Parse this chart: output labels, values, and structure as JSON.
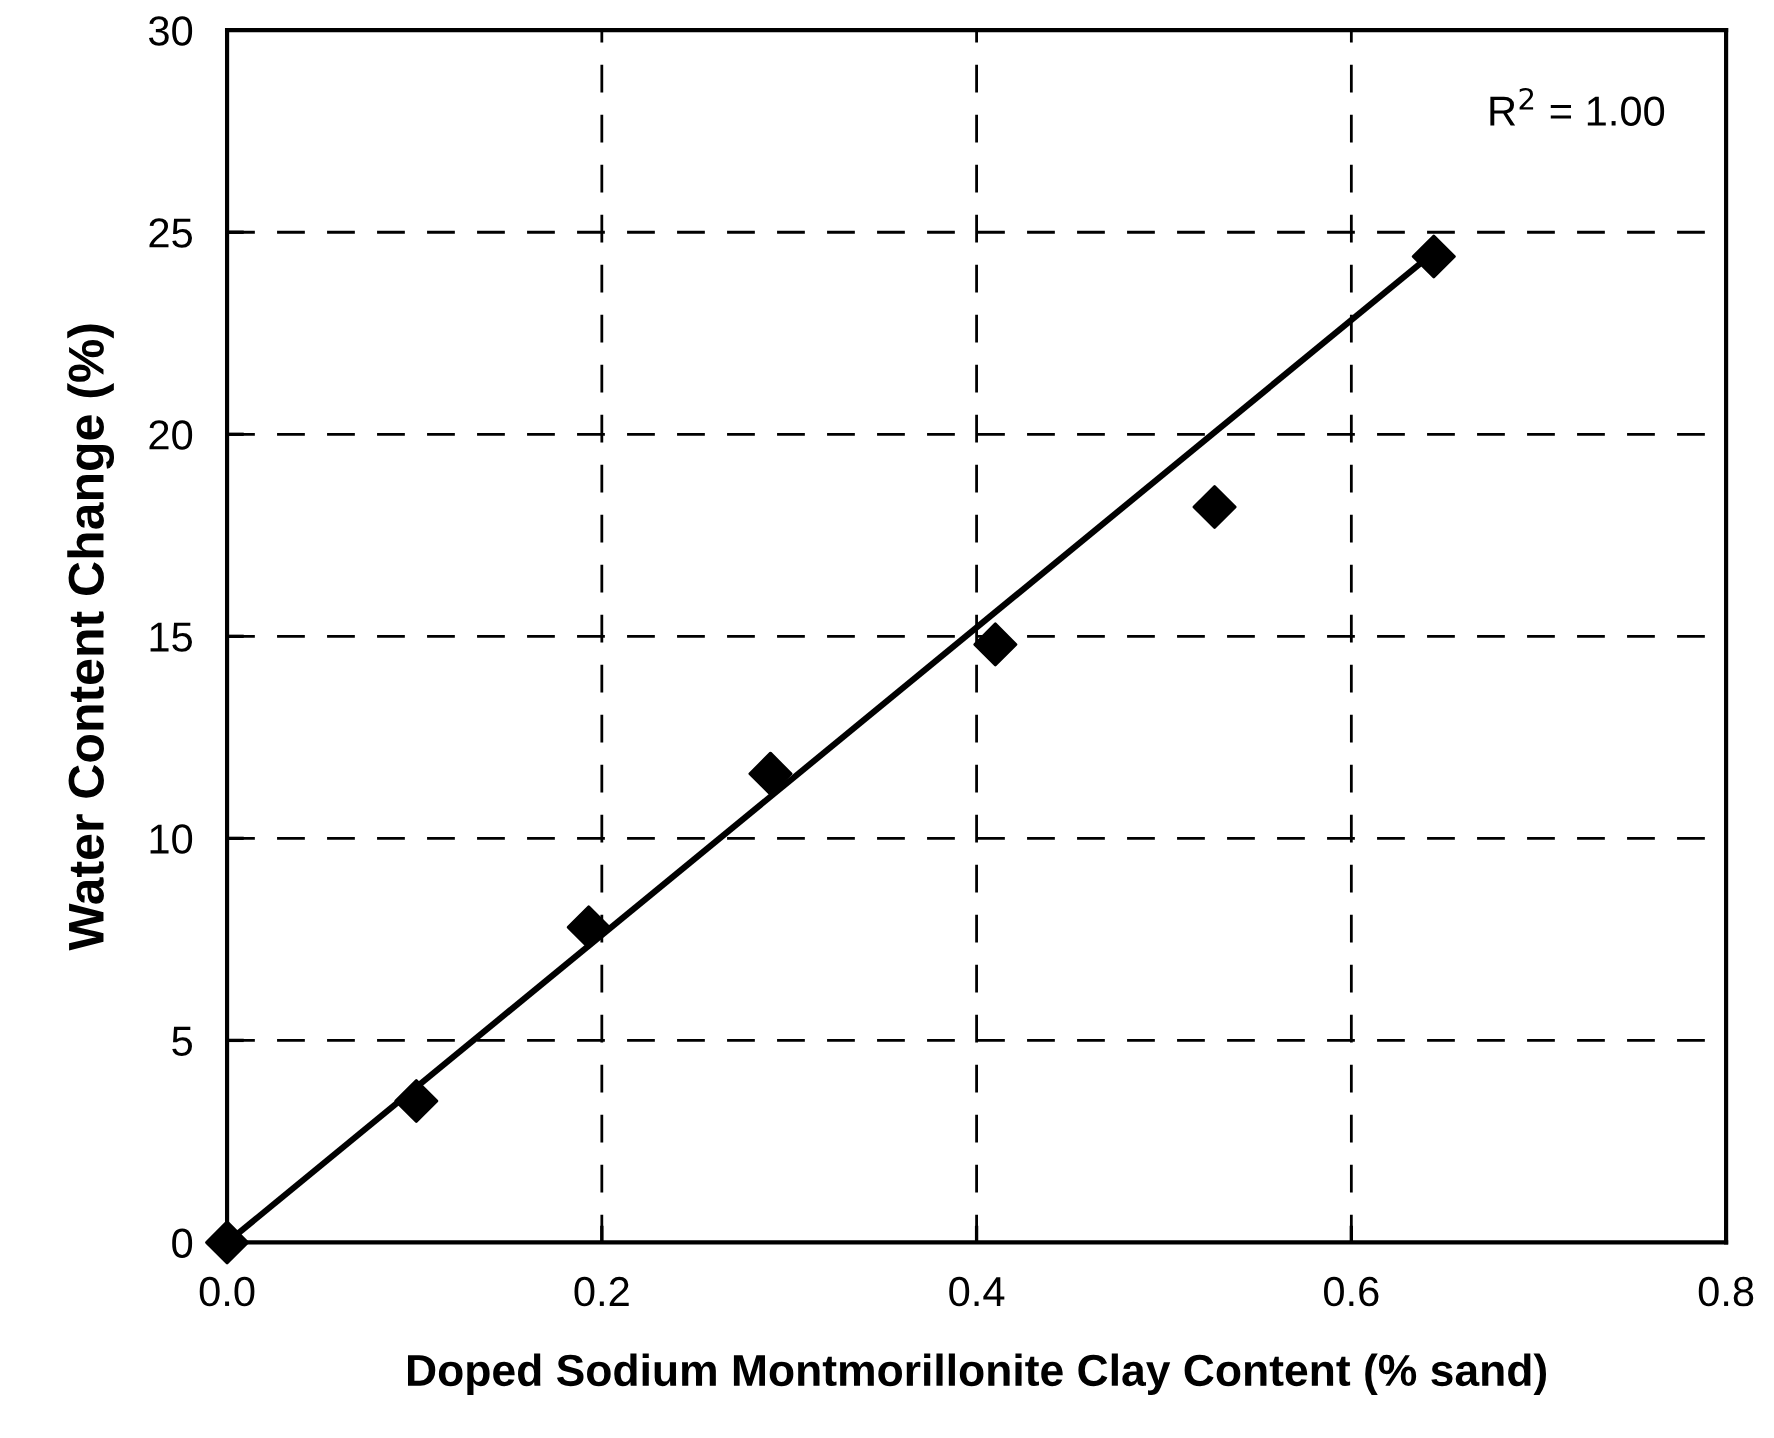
{
  "chart_data": {
    "type": "scatter",
    "xlabel": "Doped Sodium Montmorillonite Clay Content (% sand)",
    "ylabel": "Water Content Change (%)",
    "xlim": [
      0,
      0.8
    ],
    "ylim": [
      0,
      30
    ],
    "xticks": [
      {
        "value": 0,
        "label": "0.0"
      },
      {
        "value": 0.2,
        "label": "0.2"
      },
      {
        "value": 0.4,
        "label": "0.4"
      },
      {
        "value": 0.6,
        "label": "0.6"
      },
      {
        "value": 0.8,
        "label": "0.8"
      }
    ],
    "yticks": [
      0,
      5,
      10,
      15,
      20,
      25,
      30
    ],
    "grid": true,
    "legend": false,
    "series": [
      {
        "color": "#000000",
        "marker": "diamond",
        "x": [
          0,
          0.101,
          0.193,
          0.29,
          0.41,
          0.527,
          0.644
        ],
        "values": [
          0,
          3.5,
          7.8,
          11.6,
          14.8,
          18.2,
          24.4
        ]
      },
      {
        "type": "line",
        "color": "#000000",
        "marker": "none",
        "line_style": "solid",
        "x": [
          0,
          0.644
        ],
        "values": [
          0,
          24.5
        ]
      }
    ],
    "annotations": [
      "R$^{2}$ = 1.00"
    ]
  }
}
